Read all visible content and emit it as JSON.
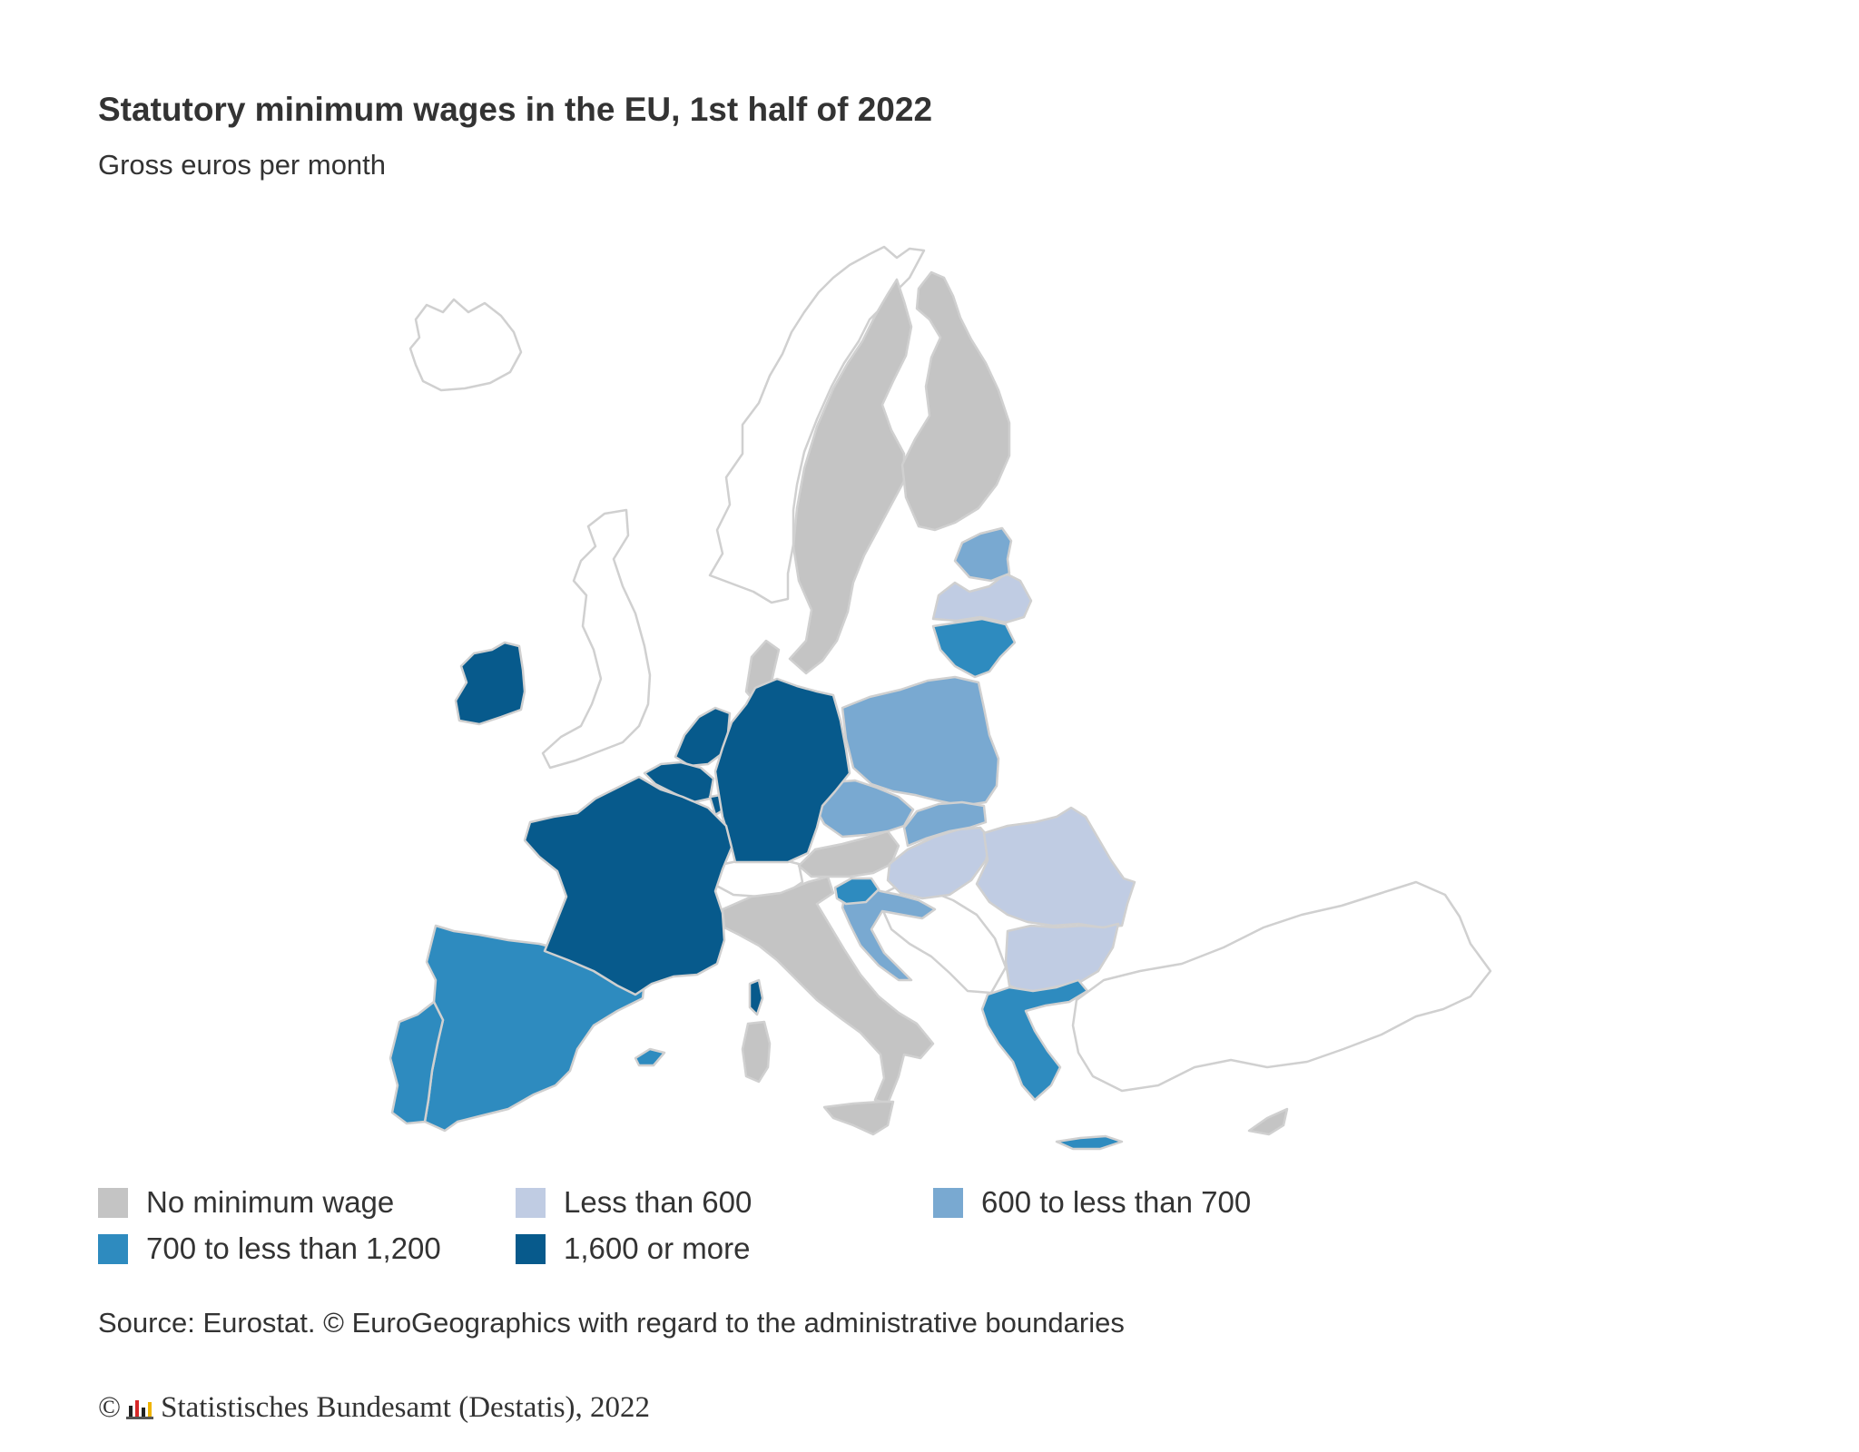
{
  "title": "Statutory minimum wages in the EU, 1st half of 2022",
  "subtitle": "Gross euros per month",
  "colors": {
    "no_minimum_wage": "#c4c4c4",
    "less_than_600": "#c0cce3",
    "600_to_700": "#79a9d1",
    "700_to_1200": "#2e8bbf",
    "1600_or_more": "#075a8c",
    "outline_only": "#ffffff",
    "border": "#d0d0d0"
  },
  "legend": [
    {
      "label": "No minimum wage",
      "color": "#c4c4c4"
    },
    {
      "label": "Less than 600",
      "color": "#c0cce3"
    },
    {
      "label": "600 to less than 700",
      "color": "#79a9d1"
    },
    {
      "label": "700 to less than 1,200",
      "color": "#2e8bbf"
    },
    {
      "label": "1,600 or more",
      "color": "#075a8c"
    }
  ],
  "source": "Source: Eurostat. © EuroGeographics with regard to the administrative boundaries",
  "copyright": {
    "symbol": "©",
    "text": "Statistisches Bundesamt (Destatis), 2022",
    "logo_icon": "destatis-bar-logo-icon"
  }
}
